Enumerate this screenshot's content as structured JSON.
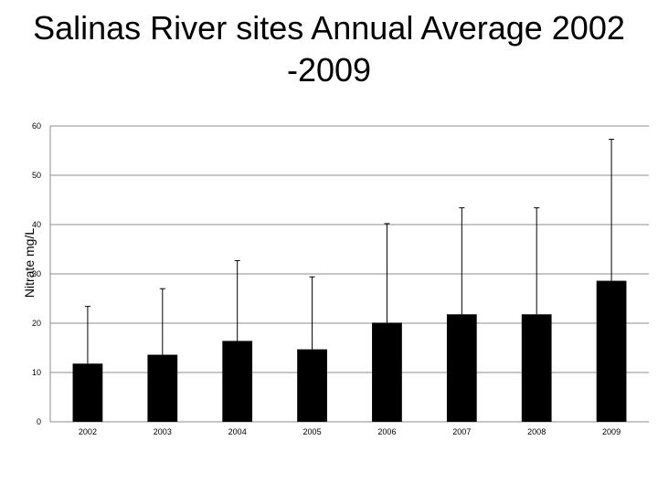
{
  "chart_data": {
    "type": "bar",
    "title_line1": "Salinas River sites Annual Average 2002",
    "title_line2": "-2009",
    "xlabel": "",
    "ylabel": "Nitrate mg/L",
    "ylim": [
      0,
      60
    ],
    "yticks": [
      0,
      10,
      20,
      30,
      40,
      50,
      60
    ],
    "grid": true,
    "categories": [
      "2002",
      "2003",
      "2004",
      "2005",
      "2006",
      "2007",
      "2008",
      "2009"
    ],
    "series": [
      {
        "name": "Annual Average",
        "values": [
          11.8,
          13.6,
          16.4,
          14.7,
          20.1,
          21.8,
          21.8,
          28.6
        ],
        "error_upper": [
          23.4,
          27.0,
          32.7,
          29.4,
          40.2,
          43.4,
          43.4,
          57.3
        ],
        "color": "#000000"
      }
    ]
  }
}
